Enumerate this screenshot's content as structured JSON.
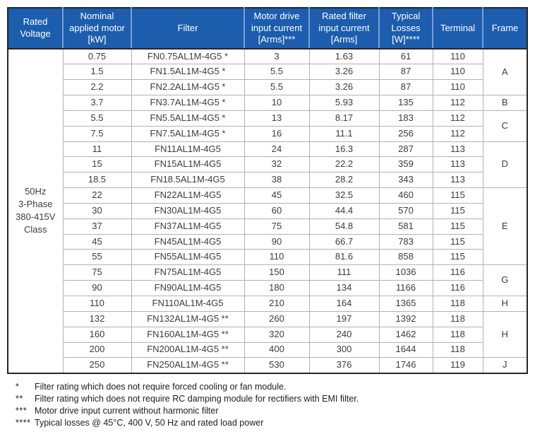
{
  "colors": {
    "header_bg": "#1c5dad",
    "header_text": "#ffffff",
    "header_separator": "#7b9ed6",
    "outer_border": "#262626",
    "row_border": "#b2b2b2",
    "group_border": "#858585",
    "cell_text": "#3c3c3c"
  },
  "table": {
    "headers": [
      "Rated Voltage",
      "Nominal applied motor [kW]",
      "Filter",
      "Motor drive input current [Arms]***",
      "Rated filter input current [Arms]",
      "Typical Losses [W]****",
      "Terminal",
      "Frame"
    ],
    "rated_voltage_lines": [
      "50Hz",
      "3-Phase",
      "380-415V",
      "Class"
    ],
    "rows": [
      {
        "kw": "0.75",
        "filter": "FN0.75AL1M-4G5 *",
        "motor_drive_current": "3",
        "filter_input_current": "1.63",
        "losses": "61",
        "terminal": "110"
      },
      {
        "kw": "1.5",
        "filter": "FN1.5AL1M-4G5 *",
        "motor_drive_current": "5.5",
        "filter_input_current": "3.26",
        "losses": "87",
        "terminal": "110"
      },
      {
        "kw": "2.2",
        "filter": "FN2.2AL1M-4G5 *",
        "motor_drive_current": "5.5",
        "filter_input_current": "3.26",
        "losses": "87",
        "terminal": "110"
      },
      {
        "kw": "3.7",
        "filter": "FN3.7AL1M-4G5 *",
        "motor_drive_current": "10",
        "filter_input_current": "5.93",
        "losses": "135",
        "terminal": "112"
      },
      {
        "kw": "5.5",
        "filter": "FN5.5AL1M-4G5 *",
        "motor_drive_current": "13",
        "filter_input_current": "8.17",
        "losses": "183",
        "terminal": "112"
      },
      {
        "kw": "7.5",
        "filter": "FN7.5AL1M-4G5 *",
        "motor_drive_current": "16",
        "filter_input_current": "11.1",
        "losses": "256",
        "terminal": "112"
      },
      {
        "kw": "11",
        "filter": "FN11AL1M-4G5",
        "motor_drive_current": "24",
        "filter_input_current": "16.3",
        "losses": "287",
        "terminal": "113"
      },
      {
        "kw": "15",
        "filter": "FN15AL1M-4G5",
        "motor_drive_current": "32",
        "filter_input_current": "22.2",
        "losses": "359",
        "terminal": "113"
      },
      {
        "kw": "18.5",
        "filter": "FN18.5AL1M-4G5",
        "motor_drive_current": "38",
        "filter_input_current": "28.2",
        "losses": "343",
        "terminal": "113"
      },
      {
        "kw": "22",
        "filter": "FN22AL1M-4G5",
        "motor_drive_current": "45",
        "filter_input_current": "32.5",
        "losses": "460",
        "terminal": "115"
      },
      {
        "kw": "30",
        "filter": "FN30AL1M-4G5",
        "motor_drive_current": "60",
        "filter_input_current": "44.4",
        "losses": "570",
        "terminal": "115"
      },
      {
        "kw": "37",
        "filter": "FN37AL1M-4G5",
        "motor_drive_current": "75",
        "filter_input_current": "54.8",
        "losses": "581",
        "terminal": "115"
      },
      {
        "kw": "45",
        "filter": "FN45AL1M-4G5",
        "motor_drive_current": "90",
        "filter_input_current": "66.7",
        "losses": "783",
        "terminal": "115"
      },
      {
        "kw": "55",
        "filter": "FN55AL1M-4G5",
        "motor_drive_current": "110",
        "filter_input_current": "81.6",
        "losses": "858",
        "terminal": "115"
      },
      {
        "kw": "75",
        "filter": "FN75AL1M-4G5",
        "motor_drive_current": "150",
        "filter_input_current": "111",
        "losses": "1036",
        "terminal": "116"
      },
      {
        "kw": "90",
        "filter": "FN90AL1M-4G5",
        "motor_drive_current": "180",
        "filter_input_current": "134",
        "losses": "1166",
        "terminal": "116"
      },
      {
        "kw": "110",
        "filter": "FN110AL1M-4G5",
        "motor_drive_current": "210",
        "filter_input_current": "164",
        "losses": "1365",
        "terminal": "118"
      },
      {
        "kw": "132",
        "filter": "FN132AL1M-4G5 **",
        "motor_drive_current": "260",
        "filter_input_current": "197",
        "losses": "1392",
        "terminal": "118"
      },
      {
        "kw": "160",
        "filter": "FN160AL1M-4G5 **",
        "motor_drive_current": "320",
        "filter_input_current": "240",
        "losses": "1462",
        "terminal": "118"
      },
      {
        "kw": "200",
        "filter": "FN200AL1M-4G5 **",
        "motor_drive_current": "400",
        "filter_input_current": "300",
        "losses": "1644",
        "terminal": "118"
      },
      {
        "kw": "250",
        "filter": "FN250AL1M-4G5 **",
        "motor_drive_current": "530",
        "filter_input_current": "376",
        "losses": "1746",
        "terminal": "119"
      }
    ],
    "frame_groups": [
      {
        "label": "A",
        "span": 3
      },
      {
        "label": "B",
        "span": 1
      },
      {
        "label": "C",
        "span": 2
      },
      {
        "label": "D",
        "span": 3
      },
      {
        "label": "E",
        "span": 5
      },
      {
        "label": "G",
        "span": 2
      },
      {
        "label": "H",
        "span": 1
      },
      {
        "label": "H",
        "span": 3
      },
      {
        "label": "J",
        "span": 1
      }
    ]
  },
  "footnotes": [
    {
      "marker": "*",
      "text": "Filter rating which does not require forced cooling or fan module."
    },
    {
      "marker": "**",
      "text": "Filter rating which does not require RC damping module for rectifiers with EMI filter."
    },
    {
      "marker": "***",
      "text": "Motor drive input current without harmonic filter"
    },
    {
      "marker": "****",
      "text": "Typical losses @ 45°C, 400 V, 50 Hz and rated load power"
    }
  ]
}
